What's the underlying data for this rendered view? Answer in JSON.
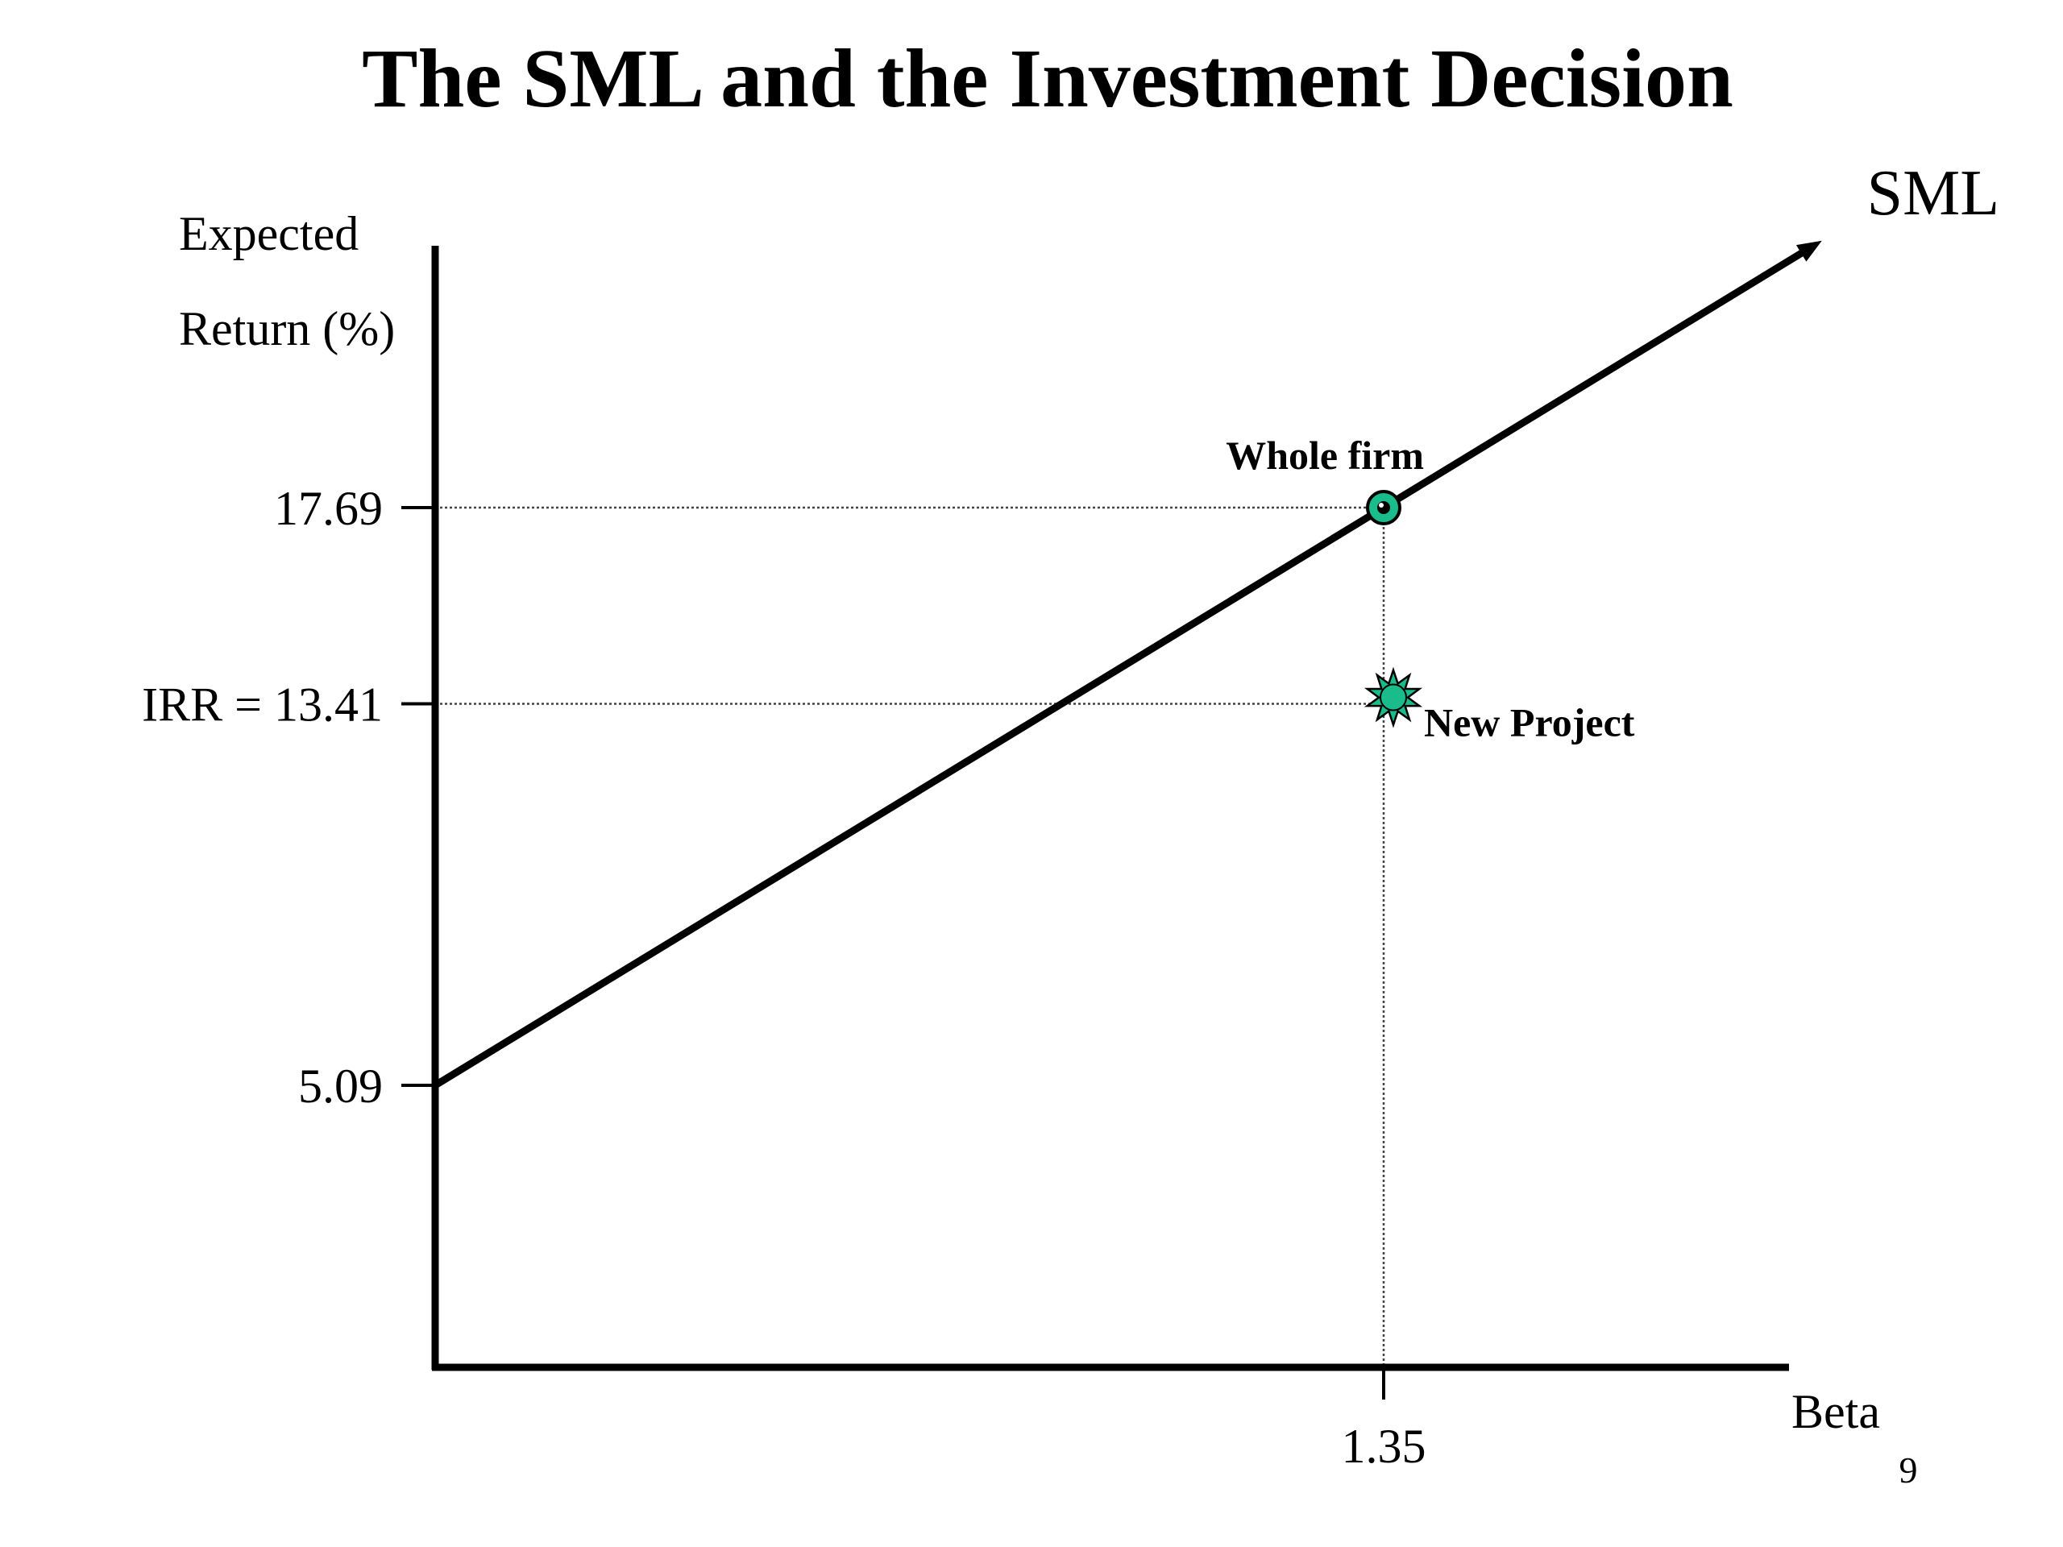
{
  "slide": {
    "title": "The SML and the Investment Decision",
    "page_number": "9"
  },
  "chart_data": {
    "type": "line",
    "title": "",
    "xlabel": "Beta",
    "ylabel_lines": [
      "Expected",
      "Return (%)"
    ],
    "series": [
      {
        "name": "SML",
        "x": [
          0,
          1.35
        ],
        "y": [
          5.09,
          17.69
        ]
      }
    ],
    "points": [
      {
        "label": "Whole firm",
        "x": 1.35,
        "y": 17.69,
        "marker": "circle",
        "color": "#1abc8c"
      },
      {
        "label": "New Project",
        "x": 1.35,
        "y": 13.41,
        "marker": "star",
        "color": "#1abc8c"
      }
    ],
    "y_ticks": [
      {
        "value": 17.69,
        "label": "17.69"
      },
      {
        "value": 13.41,
        "label": "IRR = 13.41"
      },
      {
        "value": 5.09,
        "label": "5.09"
      }
    ],
    "x_ticks": [
      {
        "value": 1.35,
        "label": "1.35"
      }
    ],
    "line_label": "SML",
    "grid": false,
    "legend": "none"
  },
  "colors": {
    "axis": "#000000",
    "marker_fill": "#1abc8c",
    "guide_line": "#444444"
  }
}
